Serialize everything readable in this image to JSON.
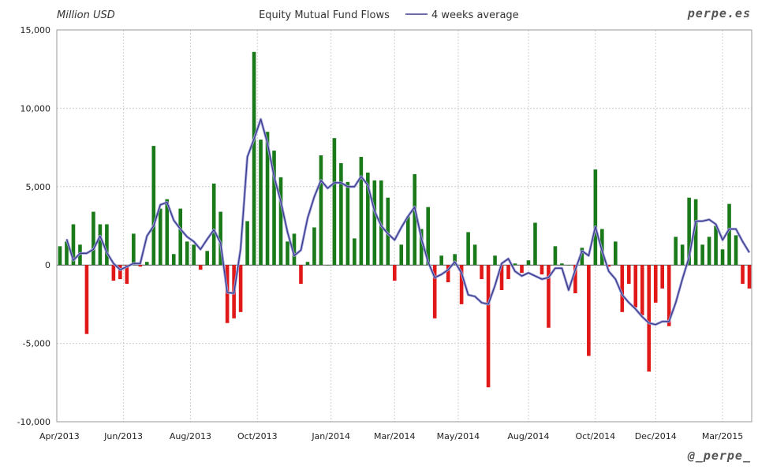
{
  "header": {
    "units_label": "Million USD",
    "brand": "perpe.es",
    "footer_handle": "@_perpe_"
  },
  "chart_data": {
    "type": "bar",
    "title": "Equity Mutual Fund Flows",
    "ylabel": "Million USD",
    "xlabel": "",
    "ylim": [
      -10000,
      15000
    ],
    "yticks": [
      -10000,
      -5000,
      0,
      5000,
      10000,
      15000
    ],
    "ytick_labels": [
      "-10,000",
      "-5,000",
      "0",
      "5,000",
      "10,000",
      "15,000"
    ],
    "xticks": [
      "Apr/2013",
      "Jun/2013",
      "Aug/2013",
      "Oct/2013",
      "Jan/2014",
      "Mar/2014",
      "May/2014",
      "Aug/2014",
      "Oct/2014",
      "Dec/2014",
      "Mar/2015"
    ],
    "grid": true,
    "legend": "top-center",
    "colors": {
      "positive": "#1a7a1a",
      "negative": "#e01818",
      "average_line": "#3a3a8c"
    },
    "series": [
      {
        "name": "",
        "kind": "bar",
        "values": [
          1200,
          1500,
          2600,
          1300,
          -4400,
          3400,
          2600,
          2600,
          -1000,
          -900,
          -1200,
          2000,
          -100,
          200,
          7600,
          3600,
          4200,
          700,
          3600,
          1500,
          1300,
          -300,
          900,
          5200,
          3400,
          -3700,
          -3400,
          -3000,
          2800,
          13600,
          8000,
          8500,
          7300,
          5600,
          1500,
          2000,
          -1200,
          200,
          2400,
          7000,
          0,
          8100,
          6500,
          5300,
          1700,
          6900,
          5900,
          5400,
          5400,
          4300,
          -1000,
          1300,
          3100,
          5800,
          2300,
          3700,
          -3400,
          600,
          -1100,
          700,
          -2500,
          2100,
          1300,
          -900,
          -7800,
          600,
          -1600,
          -900,
          100,
          -500,
          300,
          2700,
          -600,
          -4000,
          1200,
          100,
          0,
          -1800,
          1100,
          -5800,
          6100,
          2300,
          -100,
          1500,
          -3000,
          -1200,
          -2700,
          -3200,
          -6800,
          -2400,
          -1500,
          -3900,
          1800,
          1300,
          4300,
          4200,
          1300,
          1800,
          2500,
          1000,
          3900,
          1900,
          -1200,
          -1500
        ]
      },
      {
        "name": "4 weeks average",
        "kind": "line",
        "values": [
          1650,
          300,
          750,
          750,
          1000,
          1850,
          800,
          100,
          -300,
          -100,
          100,
          100,
          1850,
          2500,
          3850,
          4000,
          2850,
          2300,
          1800,
          1500,
          1000,
          1650,
          2250,
          1400,
          -1750,
          -1800,
          1050,
          6900,
          8050,
          9300,
          7800,
          5650,
          4050,
          2100,
          600,
          950,
          3000,
          4350,
          5400,
          4900,
          5250,
          5250,
          5000,
          5000,
          5650,
          5100,
          3450,
          2500,
          2000,
          1600,
          2400,
          3100,
          3700,
          1700,
          200,
          -800,
          -600,
          -300,
          200,
          -500,
          -1900,
          -2000,
          -2400,
          -2500,
          -1300,
          100,
          400,
          -400,
          -700,
          -500,
          -700,
          -900,
          -800,
          -200,
          -200,
          -1600,
          -300,
          900,
          600,
          2450,
          900,
          -400,
          -900,
          -1900,
          -2400,
          -2800,
          -3300,
          -3700,
          -3800,
          -3600,
          -3600,
          -2400,
          -900,
          500,
          2800,
          2800,
          2900,
          2600,
          1600,
          2300,
          2300,
          1500,
          800
        ]
      }
    ]
  }
}
